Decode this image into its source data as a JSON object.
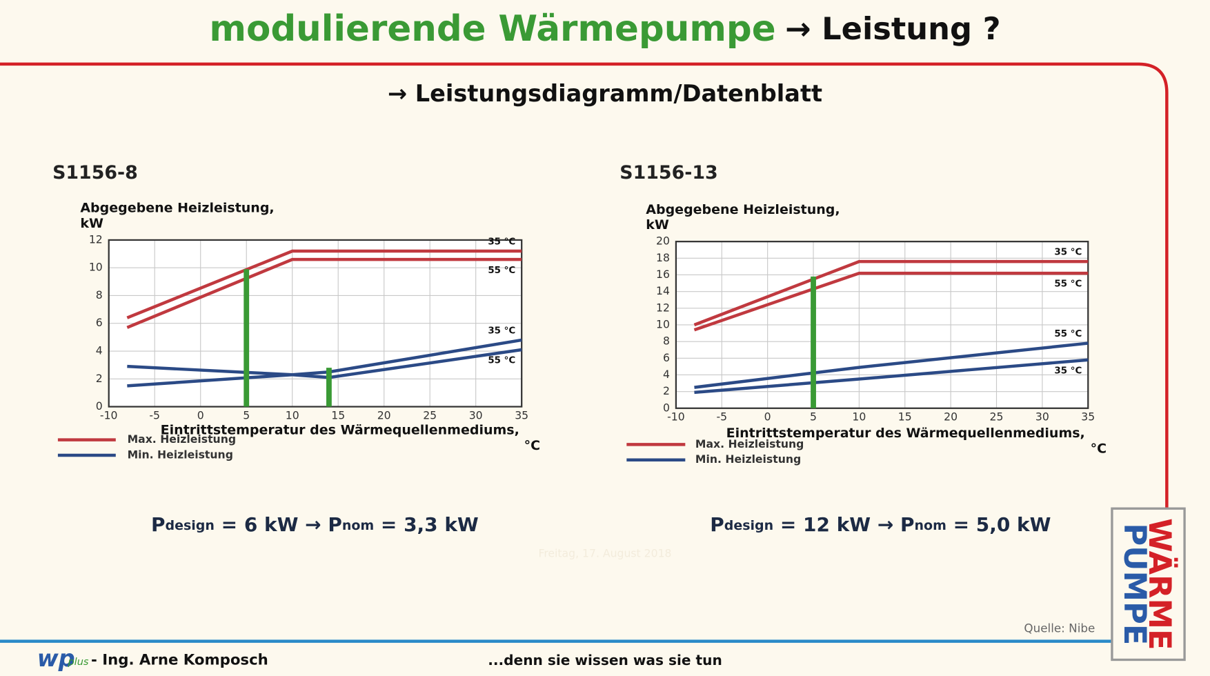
{
  "header": {
    "title_green": "modulierende Wärmepumpe",
    "title_black": "→ Leistung ?",
    "subtitle": "→ Leistungsdiagramm/Datenblatt"
  },
  "chart_data": [
    {
      "type": "line",
      "title": "S1156-8",
      "ylabel": [
        "Abgegebene Heizleistung,",
        "kW"
      ],
      "xlabel": [
        "Eintrittstemperatur des Wärmequellenmediums,",
        "°C"
      ],
      "xlim": [
        -10,
        35
      ],
      "xticks": [
        -10,
        -5,
        0,
        5,
        10,
        15,
        20,
        25,
        30,
        35
      ],
      "ylim": [
        0,
        12
      ],
      "yticks": [
        0,
        2,
        4,
        6,
        8,
        10,
        12
      ],
      "grid": true,
      "x": [
        -8,
        10,
        14,
        35
      ],
      "series": [
        {
          "name": "35 °C",
          "color": "#c0393f",
          "values": [
            6.4,
            11.2,
            11.2,
            11.2
          ]
        },
        {
          "name": "55 °C",
          "color": "#c0393f",
          "values": [
            5.7,
            10.6,
            10.6,
            10.6
          ]
        },
        {
          "name": "35 °C",
          "color": "#2b4a86",
          "values": [
            1.5,
            2.3,
            2.5,
            4.8
          ]
        },
        {
          "name": "55 °C",
          "color": "#2b4a86",
          "values": [
            2.9,
            2.3,
            2.1,
            4.1
          ]
        }
      ],
      "markers": [
        {
          "x": 5,
          "y": 9.9,
          "color": "#3a9a35"
        },
        {
          "x": 14,
          "y": 2.8,
          "color": "#3a9a35"
        }
      ],
      "legend": [
        {
          "label": "Max. Heizleistung",
          "color": "#c0393f"
        },
        {
          "label": "Min. Heizleistung",
          "color": "#2b4a86"
        }
      ]
    },
    {
      "type": "line",
      "title": "S1156-13",
      "ylabel": [
        "Abgegebene Heizleistung,",
        "kW"
      ],
      "xlabel": [
        "Eintrittstemperatur des Wärmequellenmediums,",
        "°C"
      ],
      "xlim": [
        -10,
        35
      ],
      "xticks": [
        -10,
        -5,
        0,
        5,
        10,
        15,
        20,
        25,
        30,
        35
      ],
      "ylim": [
        0,
        20
      ],
      "yticks": [
        0,
        2,
        4,
        6,
        8,
        10,
        12,
        14,
        16,
        18,
        20
      ],
      "grid": true,
      "x": [
        -8,
        10,
        35
      ],
      "series": [
        {
          "name": "35 °C",
          "color": "#c0393f",
          "values": [
            10.0,
            17.6,
            17.6
          ]
        },
        {
          "name": "55 °C",
          "color": "#c0393f",
          "values": [
            9.4,
            16.2,
            16.2
          ]
        },
        {
          "name": "55 °C",
          "color": "#2b4a86",
          "values": [
            2.5,
            4.9,
            7.8
          ]
        },
        {
          "name": "35 °C",
          "color": "#2b4a86",
          "values": [
            1.9,
            3.5,
            5.8
          ]
        }
      ],
      "markers": [
        {
          "x": 5,
          "y": 15.8,
          "color": "#3a9a35"
        }
      ],
      "legend": [
        {
          "label": "Max. Heizleistung",
          "color": "#c0393f"
        },
        {
          "label": "Min. Heizleistung",
          "color": "#2b4a86"
        }
      ]
    }
  ],
  "formulas": [
    {
      "p1": "P",
      "sub1": "design",
      "mid": " = 6 kW  →  ",
      "p2": "P",
      "sub2": "nom",
      "end": " = 3,3 kW"
    },
    {
      "p1": "P",
      "sub1": "design",
      "mid": " = 12 kW  →  ",
      "p2": "P",
      "sub2": "nom",
      "end": " = 5,0 kW"
    }
  ],
  "footer": {
    "date": "Freitag, 17. August 2018",
    "source": "Quelle: Nibe",
    "logo_main": "wp",
    "logo_sub": "plus",
    "author": "- Ing. Arne Komposch",
    "slogan": "...denn sie wissen was sie tun",
    "badge_top": "WÄRME",
    "badge_bottom": "PUMPE"
  }
}
